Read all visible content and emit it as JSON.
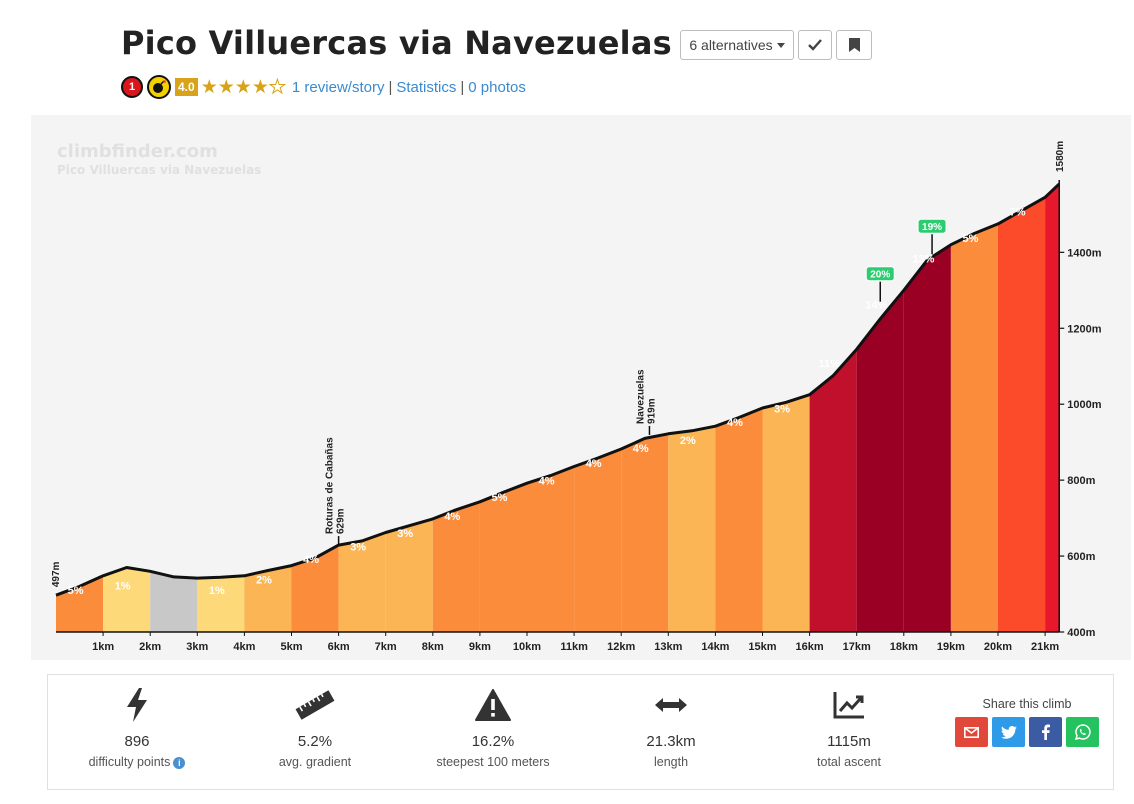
{
  "header": {
    "title": "Pico Villuercas via Navezuelas",
    "alternatives_label": "6 alternatives",
    "category_badge": "1",
    "rating": "4.0",
    "stars_filled": 4,
    "stars_total": 5,
    "reviews_link": "1 review/story",
    "statistics_link": "Statistics",
    "photos_link": "0 photos",
    "separator": "|"
  },
  "chart": {
    "watermark": "climbfinder.com",
    "watermark_sub": "Pico Villuercas via Navezuelas",
    "start_label": "497m",
    "top_label": "1580m",
    "y_ticks": [
      "1400m",
      "1200m",
      "1000m",
      "800m",
      "600m",
      "400m"
    ],
    "x_ticks": [
      "1km",
      "2km",
      "3km",
      "4km",
      "5km",
      "6km",
      "7km",
      "8km",
      "9km",
      "10km",
      "11km",
      "12km",
      "13km",
      "14km",
      "15km",
      "16km",
      "17km",
      "18km",
      "19km",
      "20km",
      "21km"
    ],
    "waypoints": [
      {
        "name": "Roturas de Cabañas",
        "elevation": "629m"
      },
      {
        "name": "Navezuelas",
        "elevation": "919m"
      }
    ],
    "max_gradients": [
      "20%",
      "19%"
    ]
  },
  "chart_data": {
    "type": "area",
    "title": "Pico Villuercas via Navezuelas",
    "xlabel": "",
    "ylabel": "",
    "x_unit": "km",
    "y_unit": "m",
    "xlim": [
      0,
      21.3
    ],
    "ylim": [
      400,
      1580
    ],
    "profile_x": [
      0,
      0.5,
      1,
      1.5,
      2,
      2.5,
      3,
      3.5,
      4,
      4.5,
      5,
      5.5,
      6,
      6.5,
      7,
      7.5,
      8,
      8.5,
      9,
      9.5,
      10,
      10.5,
      11,
      11.5,
      12,
      12.5,
      13,
      13.5,
      14,
      14.5,
      15,
      15.5,
      16,
      16.5,
      17,
      17.5,
      18,
      18.5,
      19,
      19.5,
      20,
      20.5,
      21,
      21.3
    ],
    "profile_y": [
      497,
      520,
      548,
      570,
      560,
      545,
      542,
      544,
      548,
      562,
      575,
      595,
      629,
      640,
      662,
      680,
      698,
      722,
      743,
      768,
      792,
      812,
      836,
      858,
      882,
      910,
      922,
      930,
      942,
      965,
      990,
      1005,
      1025,
      1075,
      1145,
      1225,
      1300,
      1380,
      1420,
      1450,
      1475,
      1510,
      1545,
      1580
    ],
    "segments": [
      {
        "from": 0,
        "to": 1,
        "gradient": "5%",
        "color": "#fb8c3c"
      },
      {
        "from": 1,
        "to": 2,
        "gradient": "1%",
        "color": "#fdd97a"
      },
      {
        "from": 2,
        "to": 3,
        "gradient": "",
        "color": "#c8c8c8"
      },
      {
        "from": 3,
        "to": 4,
        "gradient": "1%",
        "color": "#fdd97a"
      },
      {
        "from": 4,
        "to": 5,
        "gradient": "2%",
        "color": "#fcb554"
      },
      {
        "from": 5,
        "to": 6,
        "gradient": "4%",
        "color": "#fb8c3c"
      },
      {
        "from": 6,
        "to": 7,
        "gradient": "3%",
        "color": "#fcb554"
      },
      {
        "from": 7,
        "to": 8,
        "gradient": "3%",
        "color": "#fcb554"
      },
      {
        "from": 8,
        "to": 9,
        "gradient": "4%",
        "color": "#fb8c3c"
      },
      {
        "from": 9,
        "to": 10,
        "gradient": "5%",
        "color": "#fb8c3c"
      },
      {
        "from": 10,
        "to": 11,
        "gradient": "4%",
        "color": "#fb8c3c"
      },
      {
        "from": 11,
        "to": 12,
        "gradient": "4%",
        "color": "#fb8c3c"
      },
      {
        "from": 12,
        "to": 13,
        "gradient": "4%",
        "color": "#fb8c3c"
      },
      {
        "from": 13,
        "to": 14,
        "gradient": "2%",
        "color": "#fcb554"
      },
      {
        "from": 14,
        "to": 15,
        "gradient": "4%",
        "color": "#fb8c3c"
      },
      {
        "from": 15,
        "to": 16,
        "gradient": "3%",
        "color": "#fcb554"
      },
      {
        "from": 16,
        "to": 17,
        "gradient": "11%",
        "color": "#c0102c"
      },
      {
        "from": 17,
        "to": 18,
        "gradient": "14%",
        "color": "#9a0024"
      },
      {
        "from": 18,
        "to": 19,
        "gradient": "13%",
        "color": "#9a0024"
      },
      {
        "from": 19,
        "to": 20,
        "gradient": "5%",
        "color": "#fb8c3c"
      },
      {
        "from": 20,
        "to": 21,
        "gradient": "7%",
        "color": "#fb4b2b"
      },
      {
        "from": 21,
        "to": 21.3,
        "gradient": "",
        "color": "#e8182c"
      }
    ],
    "peaks": [
      {
        "x": 17.5,
        "y": 1270,
        "label": "20%"
      },
      {
        "x": 18.6,
        "y": 1395,
        "label": "19%"
      }
    ],
    "waypoints": [
      {
        "x": 6,
        "y": 629
      },
      {
        "x": 12.6,
        "y": 919
      }
    ]
  },
  "stats": [
    {
      "icon": "lightning-icon",
      "value": "896",
      "label": "difficulty points"
    },
    {
      "icon": "ruler-icon",
      "value": "5.2%",
      "label": "avg. gradient"
    },
    {
      "icon": "warning-icon",
      "value": "16.2%",
      "label": "steepest 100 meters"
    },
    {
      "icon": "horizontal-arrows-icon",
      "value": "21.3km",
      "label": "length"
    },
    {
      "icon": "ascent-chart-icon",
      "value": "1115m",
      "label": "total ascent"
    }
  ],
  "share": {
    "label": "Share this climb",
    "buttons": [
      {
        "icon": "email-icon",
        "color": "#e2483a"
      },
      {
        "icon": "twitter-icon",
        "color": "#2e9ae8"
      },
      {
        "icon": "facebook-icon",
        "color": "#3b5ba3"
      },
      {
        "icon": "whatsapp-icon",
        "color": "#25c260"
      }
    ]
  },
  "colors": {
    "star": "#d8a318",
    "link": "#3a8ad0",
    "category_badge": "#d8161b"
  }
}
